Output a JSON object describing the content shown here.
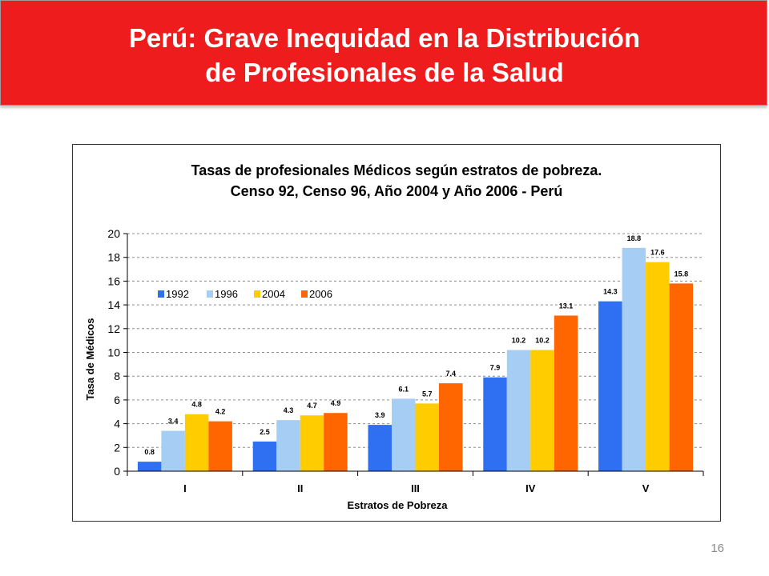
{
  "slide": {
    "title_line1": "Perú: Grave Inequidad en la Distribución",
    "title_line2": "de Profesionales de la Salud",
    "page_number": "16"
  },
  "colors": {
    "banner": "#ee1c1c",
    "series": [
      "#2f6ff2",
      "#a6cef5",
      "#ffcc00",
      "#ff6600"
    ]
  },
  "chart_data": {
    "type": "bar",
    "title_line1": "Tasas de profesionales Médicos según estratos de pobreza.",
    "title_line2": "Censo 92, Censo 96, Año 2004 y Año 2006 - Perú",
    "xlabel": "Estratos de Pobreza",
    "ylabel": "Tasa de Médicos",
    "categories": [
      "I",
      "II",
      "III",
      "IV",
      "V"
    ],
    "ylim": [
      0,
      20
    ],
    "yticks": [
      "0",
      "2",
      "4",
      "6",
      "8",
      "10",
      "12",
      "14",
      "16",
      "18",
      "20"
    ],
    "grid": true,
    "legend_position": "top-left",
    "series": [
      {
        "name": "1992",
        "values": [
          0.8,
          2.5,
          3.9,
          7.9,
          14.3
        ],
        "labels": [
          "0.8",
          "2.5",
          "3.9",
          "7.9",
          "14.3"
        ]
      },
      {
        "name": "1996",
        "values": [
          3.4,
          4.3,
          6.1,
          10.2,
          18.8
        ],
        "labels": [
          "3.4",
          "4.3",
          "6.1",
          "10.2",
          "18.8"
        ]
      },
      {
        "name": "2004",
        "values": [
          4.8,
          4.7,
          5.7,
          10.2,
          17.6
        ],
        "labels": [
          "4.8",
          "4.7",
          "5.7",
          "10.2",
          "17.6"
        ]
      },
      {
        "name": "2006",
        "values": [
          4.2,
          4.9,
          7.4,
          13.1,
          15.8
        ],
        "labels": [
          "4.2",
          "4.9",
          "7.4",
          "13.1",
          "15.8"
        ]
      }
    ]
  }
}
